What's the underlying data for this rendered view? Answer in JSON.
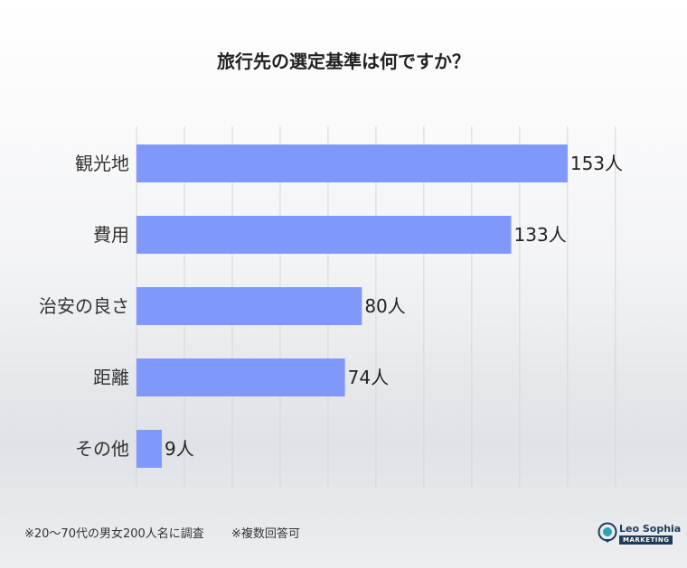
{
  "title": "旅行先の選定基準は何ですか？",
  "chart_data": {
    "type": "bar",
    "orientation": "horizontal",
    "title": "旅行先の選定基準は何ですか？",
    "categories": [
      "観光地",
      "費用",
      "治安の良さ",
      "距離",
      "その他"
    ],
    "values": [
      153,
      133,
      80,
      74,
      9
    ],
    "value_suffix": "人",
    "xlim": [
      0,
      180
    ],
    "grid": true,
    "bar_color": "#8198fb"
  },
  "notes": {
    "survey": "※20〜70代の男女200人名に調査",
    "multiple": "※複数回答可"
  },
  "logo": {
    "name": "Leo Sophia",
    "sub": "MARKETING"
  }
}
